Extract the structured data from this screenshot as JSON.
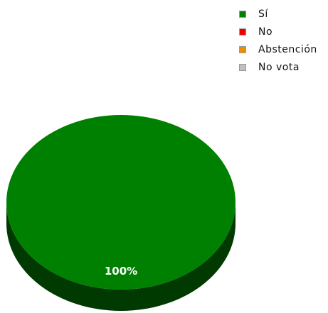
{
  "chart_data": {
    "type": "pie",
    "style": "3d",
    "title": "",
    "slices": [
      {
        "label": "Sí",
        "value": 100,
        "color": "#008000",
        "side_color": "#003a00"
      },
      {
        "label": "No",
        "value": 0,
        "color": "#ee0000",
        "side_color": "#7a0000"
      },
      {
        "label": "Abstención",
        "value": 0,
        "color": "#f08c00",
        "side_color": "#7a4800"
      },
      {
        "label": "No vota",
        "value": 0,
        "color": "#c0c0c0",
        "side_color": "#6a6a6a"
      }
    ],
    "data_labels": [
      {
        "slice": "Sí",
        "text": "100%"
      }
    ],
    "legend_position": "top-right"
  }
}
